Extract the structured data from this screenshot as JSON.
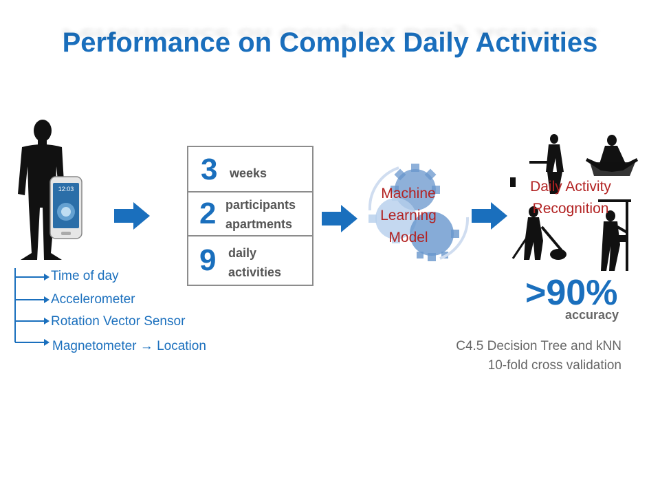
{
  "title": "Performance on Complex Daily Activities",
  "phone": {
    "screen_text": "12:03"
  },
  "sensors": [
    "Time of day",
    "Accelerometer",
    "Rotation Vector Sensor",
    "Magnetometer → Location"
  ],
  "dataset": [
    {
      "number": "3",
      "label": "weeks"
    },
    {
      "number": "2",
      "label": "participants apartments"
    },
    {
      "number": "9",
      "label": "daily activities"
    }
  ],
  "model": {
    "label": "Machine Learning Model"
  },
  "recognition": {
    "label": "Daily Activity Recognition"
  },
  "accuracy": {
    "value": ">90%",
    "label": "accuracy"
  },
  "method": {
    "line1": "C4.5 Decision Tree and kNN",
    "line2": "10-fold cross validation"
  },
  "colors": {
    "accent": "#1a6fbd",
    "highlight": "#b22222",
    "muted": "#666666",
    "border": "#8c8c8c"
  },
  "icons": [
    "person-silhouette-icon",
    "smartphone-icon",
    "arrow-right-icon",
    "gear-icon",
    "activity-silhouettes-icon"
  ]
}
